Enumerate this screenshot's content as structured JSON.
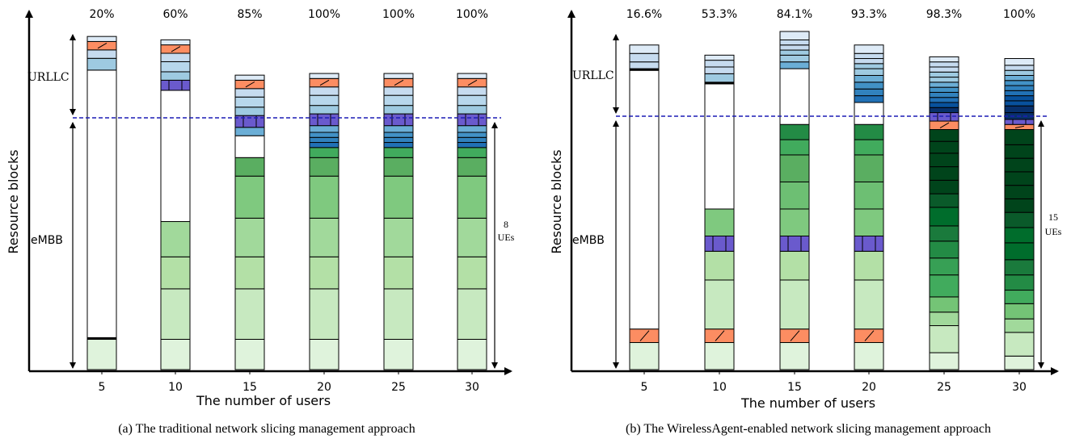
{
  "chart_data": [
    {
      "type": "bar",
      "subtype": "stacked",
      "caption": "(a) The traditional network slicing management approach",
      "xlabel": "The number of users",
      "ylabel": "Resource blocks",
      "categories": [
        "5",
        "10",
        "15",
        "20",
        "25",
        "30"
      ],
      "top_labels": [
        "20%",
        "60%",
        "85%",
        "100%",
        "100%",
        "100%"
      ],
      "region_labels": {
        "urllc": "URLLC",
        "embb": "eMBB"
      },
      "ue_annotation": [
        "8",
        "UEs"
      ],
      "bars": [
        [
          {
            "h": 0.09,
            "c": "#dff3dc"
          },
          {
            "h": 0.005,
            "c": "#000000"
          },
          {
            "h": 0.795,
            "c": "#ffffff"
          },
          {
            "h": 0.035,
            "c": "#9ecae1"
          },
          {
            "h": 0.025,
            "c": "#c6dbef"
          },
          {
            "h": 0.025,
            "c": "#fc8d62",
            "hatch": true
          },
          {
            "h": 0.015,
            "c": "#deebf7"
          }
        ],
        [
          {
            "h": 0.09,
            "c": "#dff3dc"
          },
          {
            "h": 0.15,
            "c": "#c7e9c0"
          },
          {
            "h": 0.095,
            "c": "#b3e0a6"
          },
          {
            "h": 0.105,
            "c": "#a1d99b"
          },
          {
            "h": 0.39,
            "c": "#ffffff"
          },
          {
            "h": 0.03,
            "c": "#6a5acd",
            "split": true
          },
          {
            "h": 0.025,
            "c": "#9ecae1"
          },
          {
            "h": 0.03,
            "c": "#b7d7ec"
          },
          {
            "h": 0.025,
            "c": "#c6dbef"
          },
          {
            "h": 0.025,
            "c": "#fc8d62",
            "hatch": true
          },
          {
            "h": 0.015,
            "c": "#deebf7"
          }
        ],
        [
          {
            "h": 0.09,
            "c": "#dff3dc"
          },
          {
            "h": 0.15,
            "c": "#c7e9c0"
          },
          {
            "h": 0.095,
            "c": "#b3e0a6"
          },
          {
            "h": 0.115,
            "c": "#a1d99b"
          },
          {
            "h": 0.125,
            "c": "#7fc97f"
          },
          {
            "h": 0.055,
            "c": "#5aae61"
          },
          {
            "h": 0.065,
            "c": "#ffffff"
          },
          {
            "h": 0.025,
            "c": "#6baed6"
          },
          {
            "h": 0.035,
            "c": "#6a5acd",
            "split": true
          },
          {
            "h": 0.025,
            "c": "#9ecae1"
          },
          {
            "h": 0.03,
            "c": "#b7d7ec"
          },
          {
            "h": 0.025,
            "c": "#c6dbef"
          },
          {
            "h": 0.025,
            "c": "#fc8d62",
            "hatch": true
          },
          {
            "h": 0.015,
            "c": "#deebf7"
          }
        ],
        [
          {
            "h": 0.09,
            "c": "#dff3dc"
          },
          {
            "h": 0.15,
            "c": "#c7e9c0"
          },
          {
            "h": 0.095,
            "c": "#b3e0a6"
          },
          {
            "h": 0.115,
            "c": "#a1d99b"
          },
          {
            "h": 0.125,
            "c": "#7fc97f"
          },
          {
            "h": 0.055,
            "c": "#5aae61"
          },
          {
            "h": 0.03,
            "c": "#41ab5d"
          },
          {
            "h": 0.015,
            "c": "#2171b5"
          },
          {
            "h": 0.015,
            "c": "#3182bd"
          },
          {
            "h": 0.015,
            "c": "#4292c6"
          },
          {
            "h": 0.02,
            "c": "#6baed6"
          },
          {
            "h": 0.035,
            "c": "#6a5acd",
            "split": true
          },
          {
            "h": 0.025,
            "c": "#9ecae1"
          },
          {
            "h": 0.03,
            "c": "#b7d7ec"
          },
          {
            "h": 0.025,
            "c": "#c6dbef"
          },
          {
            "h": 0.025,
            "c": "#fc8d62",
            "hatch": true
          },
          {
            "h": 0.015,
            "c": "#deebf7"
          }
        ],
        [
          {
            "h": 0.09,
            "c": "#dff3dc"
          },
          {
            "h": 0.15,
            "c": "#c7e9c0"
          },
          {
            "h": 0.095,
            "c": "#b3e0a6"
          },
          {
            "h": 0.115,
            "c": "#a1d99b"
          },
          {
            "h": 0.125,
            "c": "#7fc97f"
          },
          {
            "h": 0.055,
            "c": "#5aae61"
          },
          {
            "h": 0.03,
            "c": "#41ab5d"
          },
          {
            "h": 0.015,
            "c": "#2171b5"
          },
          {
            "h": 0.015,
            "c": "#3182bd"
          },
          {
            "h": 0.015,
            "c": "#4292c6"
          },
          {
            "h": 0.02,
            "c": "#6baed6"
          },
          {
            "h": 0.035,
            "c": "#6a5acd",
            "split": true
          },
          {
            "h": 0.025,
            "c": "#9ecae1"
          },
          {
            "h": 0.03,
            "c": "#b7d7ec"
          },
          {
            "h": 0.025,
            "c": "#c6dbef"
          },
          {
            "h": 0.025,
            "c": "#fc8d62",
            "hatch": true
          },
          {
            "h": 0.015,
            "c": "#deebf7"
          }
        ],
        [
          {
            "h": 0.09,
            "c": "#dff3dc"
          },
          {
            "h": 0.15,
            "c": "#c7e9c0"
          },
          {
            "h": 0.095,
            "c": "#b3e0a6"
          },
          {
            "h": 0.115,
            "c": "#a1d99b"
          },
          {
            "h": 0.125,
            "c": "#7fc97f"
          },
          {
            "h": 0.055,
            "c": "#5aae61"
          },
          {
            "h": 0.03,
            "c": "#41ab5d"
          },
          {
            "h": 0.015,
            "c": "#2171b5"
          },
          {
            "h": 0.015,
            "c": "#3182bd"
          },
          {
            "h": 0.015,
            "c": "#4292c6"
          },
          {
            "h": 0.02,
            "c": "#6baed6"
          },
          {
            "h": 0.035,
            "c": "#6a5acd",
            "split": true
          },
          {
            "h": 0.025,
            "c": "#9ecae1"
          },
          {
            "h": 0.03,
            "c": "#b7d7ec"
          },
          {
            "h": 0.025,
            "c": "#c6dbef"
          },
          {
            "h": 0.025,
            "c": "#fc8d62",
            "hatch": true
          },
          {
            "h": 0.015,
            "c": "#deebf7"
          }
        ]
      ]
    },
    {
      "type": "bar",
      "subtype": "stacked",
      "caption": "(b) The WirelessAgent-enabled network slicing management approach",
      "xlabel": "The number of users",
      "ylabel": "Resource blocks",
      "categories": [
        "5",
        "10",
        "15",
        "20",
        "25",
        "30"
      ],
      "top_labels": [
        "16.6%",
        "53.3%",
        "84.1%",
        "93.3%",
        "98.3%",
        "100%"
      ],
      "region_labels": {
        "urllc": "URLLC",
        "embb": "eMBB"
      },
      "ue_annotation": [
        "15",
        "UEs"
      ],
      "bars": [
        [
          {
            "h": 0.08,
            "c": "#dff3dc"
          },
          {
            "h": 0.04,
            "c": "#fc8d62",
            "hatch": true
          },
          {
            "h": 0.765,
            "c": "#ffffff"
          },
          {
            "h": 0.005,
            "c": "#000000"
          },
          {
            "h": 0.02,
            "c": "#c6dbef"
          },
          {
            "h": 0.025,
            "c": "#c6dbef"
          },
          {
            "h": 0.025,
            "c": "#deebf7"
          }
        ],
        [
          {
            "h": 0.08,
            "c": "#dff3dc"
          },
          {
            "h": 0.04,
            "c": "#fc8d62",
            "hatch": true
          },
          {
            "h": 0.145,
            "c": "#c7e9c0"
          },
          {
            "h": 0.085,
            "c": "#b3e0a6"
          },
          {
            "h": 0.045,
            "c": "#6a5acd",
            "split": true
          },
          {
            "h": 0.08,
            "c": "#7fc97f"
          },
          {
            "h": 0.37,
            "c": "#ffffff"
          },
          {
            "h": 0.005,
            "c": "#000000"
          },
          {
            "h": 0.025,
            "c": "#9ecae1"
          },
          {
            "h": 0.02,
            "c": "#c6dbef"
          },
          {
            "h": 0.02,
            "c": "#c6dbef"
          },
          {
            "h": 0.015,
            "c": "#deebf7"
          }
        ],
        [
          {
            "h": 0.08,
            "c": "#dff3dc"
          },
          {
            "h": 0.04,
            "c": "#fc8d62",
            "hatch": true
          },
          {
            "h": 0.145,
            "c": "#c7e9c0"
          },
          {
            "h": 0.085,
            "c": "#b3e0a6"
          },
          {
            "h": 0.045,
            "c": "#6a5acd",
            "split": true
          },
          {
            "h": 0.08,
            "c": "#7fc97f"
          },
          {
            "h": 0.08,
            "c": "#6dbf73"
          },
          {
            "h": 0.08,
            "c": "#5aae61"
          },
          {
            "h": 0.045,
            "c": "#41ab5d"
          },
          {
            "h": 0.045,
            "c": "#238b45"
          },
          {
            "h": 0.165,
            "c": "#ffffff"
          },
          {
            "h": 0.02,
            "c": "#6baed6"
          },
          {
            "h": 0.02,
            "c": "#9ecae1"
          },
          {
            "h": 0.015,
            "c": "#9ecae1"
          },
          {
            "h": 0.015,
            "c": "#c6dbef"
          },
          {
            "h": 0.015,
            "c": "#c6dbef"
          },
          {
            "h": 0.025,
            "c": "#deebf7"
          }
        ],
        [
          {
            "h": 0.08,
            "c": "#dff3dc"
          },
          {
            "h": 0.04,
            "c": "#fc8d62",
            "hatch": true
          },
          {
            "h": 0.145,
            "c": "#c7e9c0"
          },
          {
            "h": 0.085,
            "c": "#b3e0a6"
          },
          {
            "h": 0.045,
            "c": "#6a5acd",
            "split": true
          },
          {
            "h": 0.08,
            "c": "#7fc97f"
          },
          {
            "h": 0.08,
            "c": "#6dbf73"
          },
          {
            "h": 0.08,
            "c": "#5aae61"
          },
          {
            "h": 0.045,
            "c": "#41ab5d"
          },
          {
            "h": 0.045,
            "c": "#238b45"
          },
          {
            "h": 0.065,
            "c": "#ffffff"
          },
          {
            "h": 0.02,
            "c": "#2171b5"
          },
          {
            "h": 0.02,
            "c": "#3182bd"
          },
          {
            "h": 0.02,
            "c": "#4292c6"
          },
          {
            "h": 0.02,
            "c": "#6baed6"
          },
          {
            "h": 0.02,
            "c": "#9ecae1"
          },
          {
            "h": 0.015,
            "c": "#9ecae1"
          },
          {
            "h": 0.015,
            "c": "#c6dbef"
          },
          {
            "h": 0.015,
            "c": "#c6dbef"
          },
          {
            "h": 0.025,
            "c": "#deebf7"
          }
        ],
        [
          {
            "h": 0.05,
            "c": "#dff3dc"
          },
          {
            "h": 0.08,
            "c": "#c7e9c0"
          },
          {
            "h": 0.04,
            "c": "#a1d99b"
          },
          {
            "h": 0.045,
            "c": "#74c476"
          },
          {
            "h": 0.065,
            "c": "#41ab5d"
          },
          {
            "h": 0.05,
            "c": "#37a055"
          },
          {
            "h": 0.05,
            "c": "#238b45"
          },
          {
            "h": 0.045,
            "c": "#1a7a3c"
          },
          {
            "h": 0.055,
            "c": "#006d2c"
          },
          {
            "h": 0.04,
            "c": "#0a5a2a"
          },
          {
            "h": 0.04,
            "c": "#00441b"
          },
          {
            "h": 0.04,
            "c": "#00441b"
          },
          {
            "h": 0.04,
            "c": "#00441b"
          },
          {
            "h": 0.035,
            "c": "#00441b"
          },
          {
            "h": 0.035,
            "c": "#00441b"
          },
          {
            "h": 0.025,
            "c": "#fc8d62",
            "hatch": true
          },
          {
            "h": 0.025,
            "c": "#6a5acd",
            "split": true
          },
          {
            "h": 0.015,
            "c": "#08306b"
          },
          {
            "h": 0.015,
            "c": "#08519c"
          },
          {
            "h": 0.015,
            "c": "#2171b5"
          },
          {
            "h": 0.015,
            "c": "#3182bd"
          },
          {
            "h": 0.015,
            "c": "#4292c6"
          },
          {
            "h": 0.015,
            "c": "#6baed6"
          },
          {
            "h": 0.015,
            "c": "#9ecae1"
          },
          {
            "h": 0.015,
            "c": "#9ecae1"
          },
          {
            "h": 0.015,
            "c": "#c6dbef"
          },
          {
            "h": 0.015,
            "c": "#c6dbef"
          },
          {
            "h": 0.015,
            "c": "#deebf7"
          }
        ],
        [
          {
            "h": 0.04,
            "c": "#dff3dc"
          },
          {
            "h": 0.07,
            "c": "#c7e9c0"
          },
          {
            "h": 0.04,
            "c": "#a1d99b"
          },
          {
            "h": 0.045,
            "c": "#74c476"
          },
          {
            "h": 0.04,
            "c": "#41ab5d"
          },
          {
            "h": 0.045,
            "c": "#238b45"
          },
          {
            "h": 0.045,
            "c": "#1a7a3c"
          },
          {
            "h": 0.05,
            "c": "#006d2c"
          },
          {
            "h": 0.045,
            "c": "#006d2c"
          },
          {
            "h": 0.045,
            "c": "#0a5a2a"
          },
          {
            "h": 0.04,
            "c": "#00441b"
          },
          {
            "h": 0.04,
            "c": "#00441b"
          },
          {
            "h": 0.04,
            "c": "#00441b"
          },
          {
            "h": 0.04,
            "c": "#00441b"
          },
          {
            "h": 0.04,
            "c": "#00441b"
          },
          {
            "h": 0.045,
            "c": "#00441b"
          },
          {
            "h": 0.015,
            "c": "#fc8d62",
            "hatch": true
          },
          {
            "h": 0.015,
            "c": "#6a5acd",
            "split": true
          },
          {
            "h": 0.02,
            "c": "#08306b"
          },
          {
            "h": 0.02,
            "c": "#08306b"
          },
          {
            "h": 0.015,
            "c": "#08519c"
          },
          {
            "h": 0.015,
            "c": "#08519c"
          },
          {
            "h": 0.015,
            "c": "#2171b5"
          },
          {
            "h": 0.015,
            "c": "#3182bd"
          },
          {
            "h": 0.015,
            "c": "#4292c6"
          },
          {
            "h": 0.015,
            "c": "#6baed6"
          },
          {
            "h": 0.015,
            "c": "#9ecae1"
          },
          {
            "h": 0.015,
            "c": "#c6dbef"
          },
          {
            "h": 0.02,
            "c": "#deebf7"
          }
        ]
      ]
    }
  ]
}
